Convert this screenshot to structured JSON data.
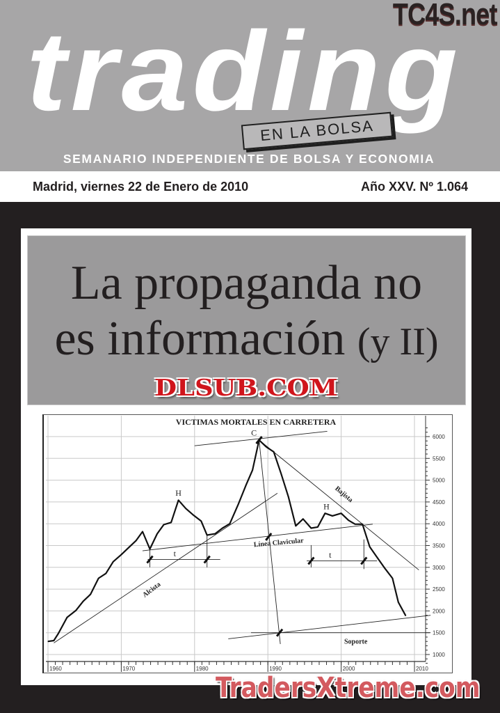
{
  "masthead": {
    "brand": "trading",
    "brand_sub": "EN LA BOLSA",
    "tagline": "SEMANARIO INDEPENDIENTE DE BOLSA Y ECONOMIA",
    "watermark_top": "TC4S.net"
  },
  "issue_bar": {
    "date": "Madrid, viernes 22 de Enero de 2010",
    "issue": "Año XXV. Nº 1.064"
  },
  "headline": {
    "line1": "La propaganda no",
    "line2": "es información",
    "line2_suffix": "(y II)"
  },
  "watermarks": {
    "center": "DLSUB.COM",
    "bottom": "TradersXtreme.com"
  },
  "colors": {
    "masthead_bg": "#a7a6a7",
    "frame_bg": "#231f20",
    "headline_box": "#9b9a9b",
    "watermark_red": "#d0151c"
  },
  "chart_data": {
    "type": "line",
    "title": "VICTIMAS MORTALES EN CARRETERA",
    "xlabel": "",
    "ylabel": "",
    "xlim": [
      1960,
      2010
    ],
    "ylim": [
      1000,
      6000
    ],
    "x_ticks": [
      "1960",
      "1970",
      "1980",
      "1990",
      "2000",
      "2010"
    ],
    "y_ticks": [
      "1000",
      "1500",
      "2000",
      "2500",
      "3000",
      "3500",
      "4000",
      "4500",
      "5000",
      "5500",
      "6000"
    ],
    "y_axis_side": "right",
    "grid": true,
    "series": [
      {
        "x": [
          1960,
          1960.8,
          1961.4,
          1962.6,
          1963.8,
          1964.8,
          1965.8,
          1966.9,
          1967.9,
          1968.9,
          1970,
          1971,
          1972,
          1972.9,
          1973.9,
          1974.9,
          1975.8,
          1976.8,
          1977.8,
          1978.8,
          1979.9,
          1980.9,
          1981.7,
          1982.8,
          1983.8,
          1984.8,
          1986,
          1987,
          1987.9,
          1988.8,
          1989.8,
          1990.8,
          1991.8,
          1992.8,
          1993.8,
          1994.8,
          1995.9,
          1996.8,
          1997.8,
          1998.8,
          2000,
          2001,
          2001.9,
          2002.9,
          2003.9,
          2004.9,
          2005.9,
          2007,
          2007.8,
          2008.8
        ],
        "y": [
          1300,
          1320,
          1480,
          1850,
          2010,
          2220,
          2380,
          2750,
          2860,
          3130,
          3290,
          3450,
          3610,
          3820,
          3420,
          3770,
          3980,
          4030,
          4540,
          4350,
          4190,
          4060,
          3740,
          3770,
          3900,
          4000,
          4460,
          4880,
          5230,
          5920,
          5760,
          5650,
          5150,
          4620,
          3950,
          4110,
          3900,
          3925,
          4240,
          4180,
          4240,
          4080,
          3990,
          3990,
          3470,
          3230,
          2990,
          2750,
          2200,
          1890
        ]
      }
    ],
    "annotation_lines": [
      {
        "name": "Alcista",
        "from": [
          1960.8,
          1265
        ],
        "to": [
          1991.3,
          4700
        ]
      },
      {
        "name": "Línea Clavicular",
        "from": [
          1972.9,
          3380
        ],
        "to": [
          2004.3,
          3990
        ]
      },
      {
        "name": "Bajista",
        "from": [
          1988.8,
          5920
        ],
        "to": [
          2010.6,
          2940
        ]
      },
      {
        "name": "C",
        "from": [
          1980,
          5790
        ],
        "to": [
          1998.1,
          6120
        ]
      },
      {
        "name": "C-projection",
        "from": [
          1988.8,
          5920
        ],
        "to": [
          1991.7,
          1240
        ]
      },
      {
        "name": "Soporte",
        "from": [
          1984.6,
          1360
        ],
        "to": [
          2012.2,
          1900
        ]
      },
      {
        "name": "Soporte-level",
        "from": [
          1987.7,
          1500
        ],
        "to": [
          2012.2,
          1500
        ]
      },
      {
        "name": "t-left",
        "from": [
          1973.6,
          3180
        ],
        "to": [
          1983.5,
          3180
        ]
      },
      {
        "name": "t-right",
        "from": [
          1995.3,
          3150
        ],
        "to": [
          2004.9,
          3150
        ]
      },
      {
        "name": "t-left-start",
        "from": [
          1973.9,
          3430
        ],
        "to": [
          1973.9,
          3000
        ]
      },
      {
        "name": "t-left-end",
        "from": [
          1981.7,
          3740
        ],
        "to": [
          1981.7,
          3000
        ]
      },
      {
        "name": "t-right-start",
        "from": [
          1995.9,
          3510
        ],
        "to": [
          1995.9,
          3000
        ]
      },
      {
        "name": "t-right-end",
        "from": [
          2003.1,
          3640
        ],
        "to": [
          2003.1,
          2960
        ]
      }
    ],
    "markers": [
      [
        1988.8,
        5920
      ],
      [
        1990.1,
        3700
      ],
      [
        1991.6,
        1500
      ],
      [
        1973.9,
        3180
      ],
      [
        1981.7,
        3180
      ],
      [
        1995.9,
        3150
      ],
      [
        2003.1,
        3150
      ]
    ],
    "labels": [
      {
        "text": "C",
        "x": 1988.1,
        "y": 6020,
        "rotate": 0
      },
      {
        "text": "H",
        "x": 1977.8,
        "y": 4640,
        "rotate": 0
      },
      {
        "text": "H",
        "x": 1998,
        "y": 4330,
        "rotate": 0
      },
      {
        "text": "Bajista",
        "x": 2000.2,
        "y": 4640,
        "rotate": 40
      },
      {
        "text": "Alcista",
        "x": 1974.3,
        "y": 2450,
        "rotate": -37
      },
      {
        "text": "Línea  Clavicular",
        "x": 1991.5,
        "y": 3520,
        "rotate": -5
      },
      {
        "text": "t",
        "x": 1977.3,
        "y": 3250,
        "rotate": 0
      },
      {
        "text": "t",
        "x": 1998.5,
        "y": 3220,
        "rotate": 0
      },
      {
        "text": "Soporte",
        "x": 2002,
        "y": 1250,
        "rotate": 0
      }
    ]
  }
}
